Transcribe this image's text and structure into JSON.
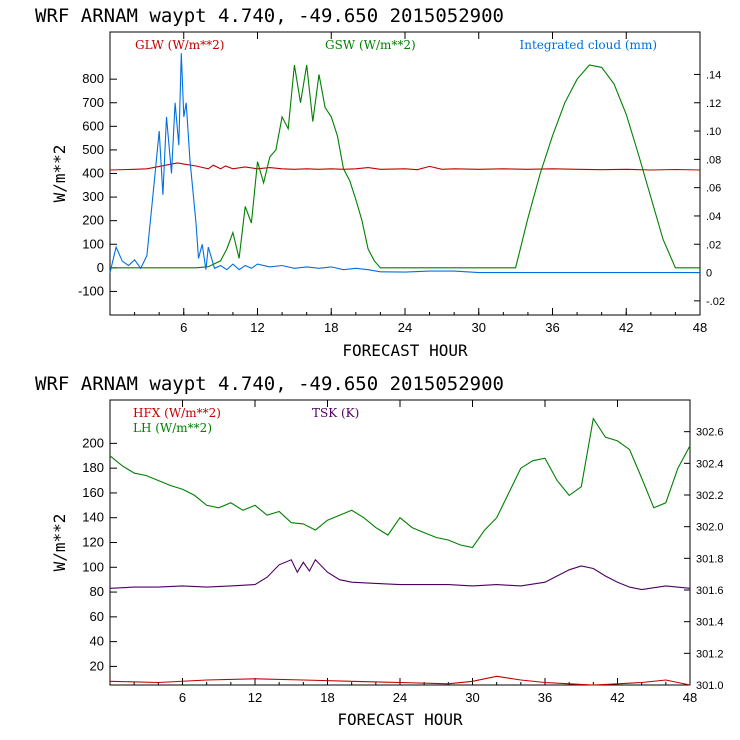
{
  "chart_data": [
    {
      "type": "line",
      "title": "WRF  ARNAM waypt    4.740, -49.650  2015052900",
      "xlabel": "FORECAST HOUR",
      "ylabel": "W/m**2",
      "xlim": [
        0,
        48
      ],
      "ylim": [
        -200,
        1000
      ],
      "xticks": [
        6,
        12,
        18,
        24,
        30,
        36,
        42,
        48
      ],
      "yticks": [
        -100,
        0,
        100,
        200,
        300,
        400,
        500,
        600,
        700,
        800
      ],
      "y2lim": [
        -0.03,
        0.17
      ],
      "y2ticks": [
        -0.02,
        0,
        0.02,
        0.04,
        0.06,
        0.08,
        0.1,
        0.12,
        0.14
      ],
      "y2ticklabels": [
        "-.02",
        "0",
        ".02",
        ".04",
        ".06",
        ".08",
        ".10",
        ".12",
        ".14"
      ],
      "series": [
        {
          "name": "GLW (W/m**2)",
          "color": "#c00000",
          "axis": "left",
          "x": [
            0,
            2,
            3,
            4,
            5,
            5.5,
            6,
            7,
            8,
            8.4,
            9,
            9.4,
            10,
            11,
            12,
            13,
            14,
            15,
            16,
            17,
            18,
            19,
            20,
            21,
            22,
            24,
            25,
            26,
            27,
            28,
            30,
            32,
            34,
            36,
            38,
            40,
            42,
            44,
            46,
            48
          ],
          "values": [
            415,
            418,
            420,
            430,
            440,
            445,
            440,
            432,
            420,
            435,
            420,
            432,
            420,
            428,
            420,
            425,
            420,
            418,
            420,
            418,
            420,
            418,
            420,
            425,
            418,
            420,
            416,
            430,
            418,
            420,
            418,
            420,
            418,
            420,
            418,
            416,
            418,
            415,
            417,
            415
          ]
        },
        {
          "name": "GSW (W/m**2)",
          "color": "#008000",
          "axis": "left",
          "x": [
            0,
            7,
            8,
            9,
            9.5,
            10,
            10.5,
            11,
            11.5,
            12,
            12.5,
            13,
            13.5,
            14,
            14.5,
            15,
            15.5,
            16,
            16.5,
            17,
            17.5,
            18,
            18.5,
            19,
            19.5,
            20,
            20.5,
            21,
            21.5,
            22,
            33,
            34,
            35,
            36,
            37,
            38,
            39,
            40,
            41,
            42,
            43,
            44,
            45,
            46,
            48
          ],
          "values": [
            0,
            0,
            5,
            30,
            80,
            150,
            40,
            260,
            190,
            450,
            360,
            470,
            500,
            640,
            590,
            860,
            700,
            860,
            620,
            820,
            680,
            640,
            560,
            420,
            370,
            290,
            200,
            80,
            30,
            0,
            0,
            210,
            400,
            560,
            700,
            800,
            860,
            850,
            780,
            650,
            480,
            300,
            120,
            0,
            0
          ]
        },
        {
          "name": "Integrated cloud (mm)",
          "color": "#0070e0",
          "axis": "right",
          "x": [
            0,
            0.5,
            1,
            1.5,
            2,
            2.5,
            3,
            3.5,
            4,
            4.3,
            4.6,
            5,
            5.3,
            5.6,
            5.8,
            6,
            6.2,
            6.5,
            7,
            7.2,
            7.5,
            7.8,
            8,
            8.5,
            9,
            9.5,
            10,
            10.5,
            11,
            11.5,
            12,
            13,
            14,
            15,
            16,
            17,
            18,
            19,
            20,
            21,
            22,
            24,
            26,
            28,
            29,
            30,
            48
          ],
          "values": [
            0,
            0.018,
            0.008,
            0.005,
            0.009,
            0.003,
            0.012,
            0.055,
            0.1,
            0.055,
            0.11,
            0.07,
            0.12,
            0.09,
            0.155,
            0.11,
            0.12,
            0.08,
            0.035,
            0.01,
            0.02,
            0.002,
            0.018,
            0.003,
            0.005,
            0.002,
            0.006,
            0.002,
            0.005,
            0.003,
            0.006,
            0.004,
            0.005,
            0.003,
            0.004,
            0.003,
            0.004,
            0.002,
            0.003,
            0.002,
            0.0005,
            0.0003,
            0.001,
            0.001,
            0.0005,
            0,
            0
          ]
        }
      ]
    },
    {
      "type": "line",
      "title": "WRF  ARNAM waypt    4.740, -49.650  2015052900",
      "xlabel": "FORECAST HOUR",
      "ylabel": "W/m**2",
      "xlim": [
        0,
        48
      ],
      "ylim": [
        5,
        235
      ],
      "xticks": [
        6,
        12,
        18,
        24,
        30,
        36,
        42,
        48
      ],
      "yticks": [
        20,
        40,
        60,
        80,
        100,
        120,
        140,
        160,
        180,
        200
      ],
      "y2lim": [
        301.0,
        302.8
      ],
      "y2ticks": [
        301.0,
        301.2,
        301.4,
        301.6,
        301.8,
        302.0,
        302.2,
        302.4,
        302.6
      ],
      "y2ticklabels": [
        "301.0",
        "301.2",
        "301.4",
        "301.6",
        "301.8",
        "302.0",
        "302.2",
        "302.4",
        "302.6"
      ],
      "series": [
        {
          "name": "HFX (W/m**2)",
          "color": "#c00000",
          "axis": "left",
          "x": [
            0,
            4,
            8,
            12,
            16,
            20,
            24,
            28,
            30,
            32,
            34,
            36,
            38,
            40,
            42,
            44,
            46,
            48
          ],
          "values": [
            8,
            7,
            9,
            10,
            9,
            8,
            7,
            6,
            8,
            12,
            9,
            7,
            6,
            5,
            6,
            7,
            9,
            5
          ]
        },
        {
          "name": "LH  (W/m**2)",
          "color": "#008000",
          "axis": "left",
          "x": [
            0,
            1,
            2,
            3,
            4,
            5,
            6,
            7,
            8,
            9,
            10,
            11,
            12,
            13,
            14,
            15,
            16,
            17,
            18,
            19,
            20,
            21,
            22,
            23,
            24,
            25,
            26,
            27,
            28,
            29,
            30,
            31,
            32,
            33,
            34,
            35,
            36,
            37,
            38,
            39,
            40,
            41,
            42,
            43,
            44,
            45,
            46,
            47,
            48
          ],
          "values": [
            190,
            182,
            176,
            174,
            170,
            166,
            163,
            158,
            150,
            148,
            152,
            146,
            150,
            142,
            145,
            136,
            135,
            130,
            138,
            142,
            146,
            140,
            132,
            126,
            140,
            132,
            128,
            124,
            122,
            118,
            116,
            130,
            140,
            160,
            180,
            186,
            188,
            170,
            158,
            165,
            220,
            205,
            202,
            195,
            172,
            148,
            152,
            180,
            198
          ]
        },
        {
          "name": "TSK (K)",
          "color": "#4b0060",
          "axis": "left",
          "x": [
            0,
            2,
            4,
            6,
            8,
            10,
            12,
            13,
            14,
            15,
            15.5,
            16,
            16.5,
            17,
            18,
            19,
            20,
            22,
            24,
            26,
            28,
            30,
            32,
            34,
            36,
            37,
            38,
            39,
            40,
            41,
            42,
            43,
            44,
            46,
            48
          ],
          "values": [
            83,
            84,
            84,
            85,
            84,
            85,
            86,
            92,
            102,
            106,
            96,
            104,
            97,
            106,
            96,
            90,
            88,
            87,
            86,
            86,
            86,
            85,
            86,
            85,
            88,
            93,
            98,
            101,
            99,
            93,
            88,
            84,
            82,
            85,
            83
          ]
        }
      ]
    }
  ]
}
